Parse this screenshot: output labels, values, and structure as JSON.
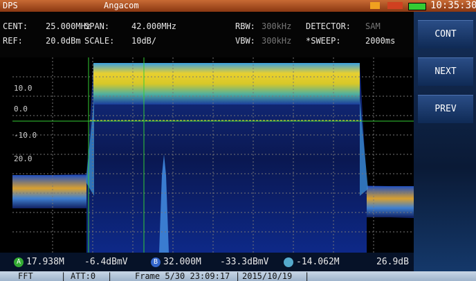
{
  "top_bar": {
    "left": "DPS",
    "title": "Angacom",
    "time": "10:35:30"
  },
  "settings": {
    "row1": [
      [
        "CENT:",
        "25.000MHz"
      ],
      [
        "SPAN:",
        "42.000MHz"
      ],
      [
        "RBW:",
        "300kHz"
      ],
      [
        "DETECTOR:",
        "SAM"
      ]
    ],
    "row2": [
      [
        "REF:",
        "20.0dBm"
      ],
      [
        "SCALE:",
        "10dB/"
      ],
      [
        "VBW:",
        "300kHz"
      ],
      [
        "*SWEEP:",
        "2000ms"
      ]
    ]
  },
  "buttons": [
    "CONT",
    "NEXT",
    "PREV"
  ],
  "graticule_labels": [
    "10.0",
    "0.0",
    "-10.0",
    "20.0"
  ],
  "markers": {
    "a_badge": "A",
    "a_freq": "17.938M",
    "a_level": "-6.4dBmV",
    "b_badge": "B",
    "b_freq": "32.000M",
    "b_level": "-33.3dBmV",
    "delta_freq": "-14.062M",
    "delta_level": "26.9dB"
  },
  "status": [
    "FFT",
    "|",
    "ATT:0",
    "|",
    "Frame 5/30 23:09:17",
    "|",
    "2015/10/19",
    "|"
  ]
}
